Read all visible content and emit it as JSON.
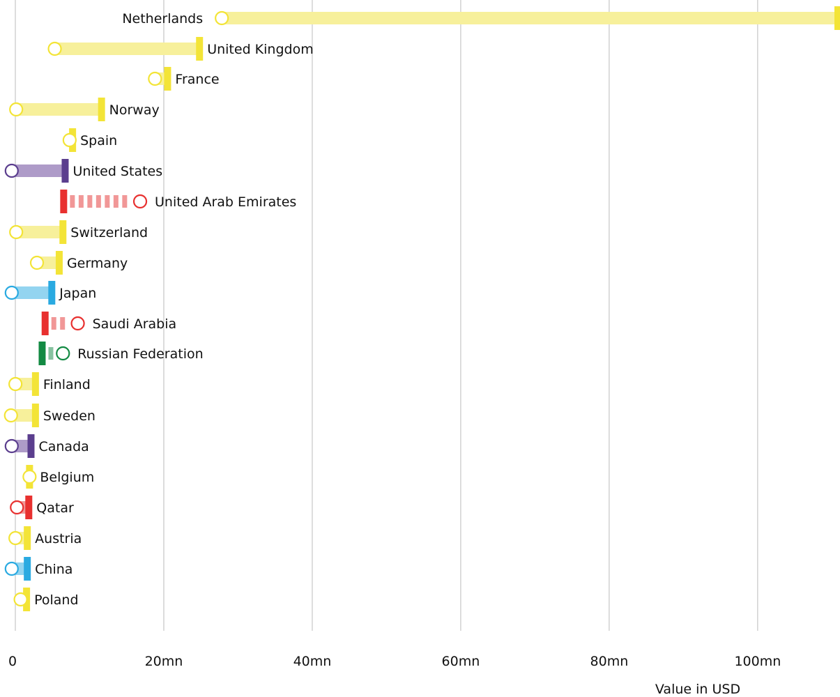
{
  "chart_data": {
    "type": "dumbbell",
    "xlabel": "Value in USD",
    "x_ticks": [
      {
        "value": 0,
        "label": "0"
      },
      {
        "value": 20000000,
        "label": "20mn"
      },
      {
        "value": 40000000,
        "label": "40mn"
      },
      {
        "value": 60000000,
        "label": "60mn"
      },
      {
        "value": 80000000,
        "label": "80mn"
      },
      {
        "value": 100000000,
        "label": "100mn"
      }
    ],
    "xlim": [
      0,
      111000000
    ],
    "grid": "vertical",
    "colors": {
      "yellow_bar": "#f3e437",
      "yellow_band": "#f7f09b",
      "purple_bar": "#5b3e8e",
      "purple_band": "#ae9bc8",
      "red_bar": "#e8302f",
      "red_band": "#f19797",
      "blue_bar": "#2aaae1",
      "blue_band": "#93d4f0",
      "green_bar": "#138a43",
      "green_band": "#87c2a0",
      "grid": "#bbbbbb"
    },
    "rows": [
      {
        "label": "Netherlands",
        "bar": 111000000,
        "circle": 28000000,
        "color": "yellow",
        "dashed": false,
        "label_side": "left"
      },
      {
        "label": "United Kingdom",
        "bar": 25000000,
        "circle": 5500000,
        "color": "yellow",
        "dashed": false,
        "label_side": "right"
      },
      {
        "label": "France",
        "bar": 20700000,
        "circle": 19000000,
        "color": "yellow",
        "dashed": false,
        "label_side": "right"
      },
      {
        "label": "Norway",
        "bar": 11800000,
        "circle": 300000,
        "color": "yellow",
        "dashed": false,
        "label_side": "right"
      },
      {
        "label": "Spain",
        "bar": 7900000,
        "circle": 7500000,
        "color": "yellow",
        "dashed": false,
        "label_side": "right"
      },
      {
        "label": "United States",
        "bar": 6900000,
        "circle": -300000,
        "color": "purple",
        "dashed": false,
        "label_side": "right"
      },
      {
        "label": "United Arab Emirates",
        "bar": 6700000,
        "circle": 17000000,
        "color": "red",
        "dashed": true,
        "label_side": "right"
      },
      {
        "label": "Switzerland",
        "bar": 6600000,
        "circle": 300000,
        "color": "yellow",
        "dashed": false,
        "label_side": "right"
      },
      {
        "label": "Germany",
        "bar": 6100000,
        "circle": 3100000,
        "color": "yellow",
        "dashed": false,
        "label_side": "right"
      },
      {
        "label": "Japan",
        "bar": 5100000,
        "circle": -300000,
        "color": "blue",
        "dashed": false,
        "label_side": "right"
      },
      {
        "label": "Saudi Arabia",
        "bar": 4200000,
        "circle": 8600000,
        "color": "red",
        "dashed": true,
        "label_side": "right"
      },
      {
        "label": "Russian Federation",
        "bar": 3800000,
        "circle": 6600000,
        "color": "green",
        "dashed": true,
        "label_side": "right"
      },
      {
        "label": "Finland",
        "bar": 2900000,
        "circle": 200000,
        "color": "yellow",
        "dashed": false,
        "label_side": "right"
      },
      {
        "label": "Sweden",
        "bar": 2900000,
        "circle": -400000,
        "color": "yellow",
        "dashed": false,
        "label_side": "right"
      },
      {
        "label": "Canada",
        "bar": 2300000,
        "circle": -300000,
        "color": "purple",
        "dashed": false,
        "label_side": "right"
      },
      {
        "label": "Belgium",
        "bar": 2100000,
        "circle": 2100000,
        "color": "yellow",
        "dashed": false,
        "label_side": "right"
      },
      {
        "label": "Qatar",
        "bar": 2000000,
        "circle": 400000,
        "color": "red",
        "dashed": false,
        "label_side": "right"
      },
      {
        "label": "Austria",
        "bar": 1800000,
        "circle": 200000,
        "color": "yellow",
        "dashed": false,
        "label_side": "right"
      },
      {
        "label": "China",
        "bar": 1800000,
        "circle": -300000,
        "color": "blue",
        "dashed": false,
        "label_side": "right"
      },
      {
        "label": "Poland",
        "bar": 1700000,
        "circle": 900000,
        "color": "yellow",
        "dashed": false,
        "label_side": "right"
      }
    ]
  }
}
